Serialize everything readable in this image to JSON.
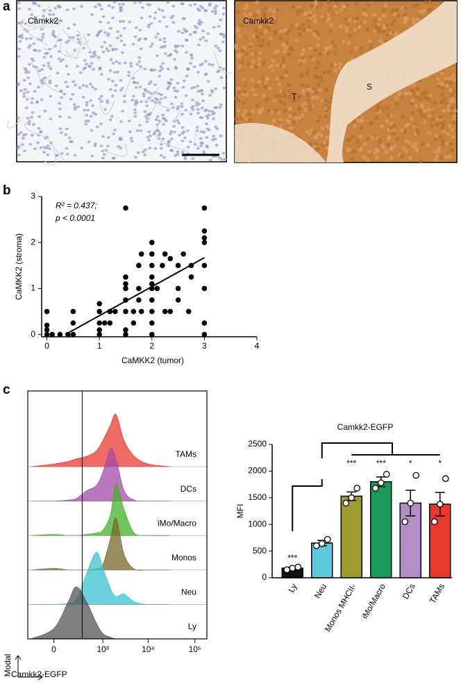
{
  "chart_data": [
    {
      "type": "image",
      "panel": "a",
      "labels": [
        "Camkk2",
        "Camkk2"
      ],
      "regions": [
        "T",
        "S"
      ]
    },
    {
      "type": "scatter",
      "panel": "b",
      "x": [
        0,
        0,
        0,
        0,
        0.1,
        0.25,
        0.4,
        0.5,
        0.5,
        0.5,
        1,
        1,
        1,
        1,
        1,
        1.1,
        1.2,
        1.2,
        1.3,
        1.5,
        1.5,
        1.5,
        1.5,
        1.5,
        1.5,
        1.5,
        1.5,
        1.65,
        1.65,
        1.75,
        1.75,
        1.75,
        1.8,
        1.8,
        2,
        2,
        2,
        2,
        2,
        2,
        2,
        2,
        2,
        2,
        2.1,
        2.2,
        2.25,
        2.25,
        2.35,
        2.35,
        2.5,
        2.5,
        2.5,
        2.6,
        2.7,
        2.75,
        2.75,
        3,
        3,
        3,
        3,
        3,
        3,
        3,
        3
      ],
      "y": [
        0,
        0.1,
        0.2,
        0.5,
        0,
        0,
        0,
        0,
        0.25,
        0.5,
        0,
        0.1,
        0.25,
        0.5,
        0.67,
        0.25,
        0.25,
        0.5,
        0.5,
        0,
        0.1,
        0.5,
        0.75,
        1,
        1.1,
        1.25,
        2.75,
        0.25,
        0.5,
        0.75,
        1,
        1.5,
        0.5,
        1.75,
        0,
        0.25,
        0.5,
        0.75,
        1,
        1.1,
        1.25,
        1.5,
        1.75,
        2,
        1,
        1.5,
        0.5,
        1.75,
        0.5,
        1.65,
        0.75,
        1,
        1.5,
        1.75,
        0.5,
        1.25,
        1.5,
        0,
        0.25,
        1,
        1.5,
        2,
        2.1,
        2.25,
        2.75
      ],
      "fit": {
        "x": [
          0.35,
          3
        ],
        "y": [
          0,
          1.67
        ]
      },
      "xlim": [
        -0.1,
        4
      ],
      "ylim": [
        -0.05,
        3
      ],
      "xticks": [
        0,
        1,
        2,
        3,
        4
      ],
      "yticks": [
        0,
        1,
        2,
        3
      ],
      "xlabel": "CaMKK2 (tumor)",
      "ylabel": "CaMKK2 (stroma)",
      "annotations": [
        "R² = 0.437;",
        "p < 0.0001"
      ],
      "color": "#000000"
    },
    {
      "type": "density",
      "panel": "c",
      "x": [
        -200,
        0,
        100,
        200,
        400,
        700,
        1000,
        1500,
        2000,
        3000,
        5000,
        10000,
        30000
      ],
      "series": [
        {
          "name": "TAMs",
          "color": "#e8392f",
          "values": [
            0,
            0.05,
            0.1,
            0.15,
            0.2,
            0.3,
            0.5,
            0.8,
            1,
            0.5,
            0.2,
            0.05,
            0
          ]
        },
        {
          "name": "DCs",
          "color": "#a54aa8",
          "values": [
            0,
            0,
            0.02,
            0.05,
            0.2,
            0.3,
            0.55,
            1,
            0.8,
            0.2,
            0.02,
            0,
            0
          ]
        },
        {
          "name": "iMo/Macro",
          "color": "#43b02a",
          "values": [
            0,
            0.02,
            0,
            0,
            0.02,
            0.05,
            0.1,
            0.4,
            1,
            0.5,
            0.05,
            0,
            0
          ]
        },
        {
          "name": "Monos",
          "color": "#7a6a2a",
          "values": [
            0,
            0.03,
            0,
            0,
            0,
            0.02,
            0.1,
            0.6,
            1,
            0.3,
            0.02,
            0,
            0
          ]
        },
        {
          "name": "Neu",
          "color": "#38c3cf",
          "values": [
            0,
            0,
            0.02,
            0.1,
            0.6,
            1,
            0.7,
            0.3,
            0.15,
            0.2,
            0.05,
            0,
            0
          ]
        },
        {
          "name": "Ly",
          "color": "#555555",
          "values": [
            0,
            0.2,
            0.7,
            1,
            0.7,
            0.3,
            0.1,
            0.03,
            0,
            0,
            0,
            0,
            0
          ]
        }
      ],
      "xlim": [
        -260,
        180000
      ],
      "xscale": "biexponential",
      "xticks": [
        0,
        {
          "value": 1000,
          "label": "10³"
        },
        {
          "value": 10000,
          "label": "10⁴"
        },
        {
          "value": 100000,
          "label": "10⁵"
        }
      ],
      "vline": 300,
      "ylabel": "Modal",
      "xlabel": "Camkk2-EGFP"
    },
    {
      "type": "bar",
      "title": "Camkk2-EGFP",
      "ylabel": "MFI",
      "categories": [
        "Ly",
        "Neu",
        "Monos MHCII-",
        "iMo/Macro",
        "DCs",
        "TAMs"
      ],
      "values": [
        180,
        650,
        1530,
        1800,
        1400,
        1380
      ],
      "errors": [
        20,
        50,
        80,
        90,
        240,
        220
      ],
      "points": [
        [
          150,
          180,
          200
        ],
        [
          600,
          640,
          720
        ],
        [
          1400,
          1500,
          1680
        ],
        [
          1680,
          1780,
          1940
        ],
        [
          1050,
          1400,
          1920
        ],
        [
          1050,
          1380,
          1860
        ]
      ],
      "colors": [
        "#111111",
        "#5bc8dc",
        "#9d9a2e",
        "#1a9a5a",
        "#b48cc8",
        "#e8392f"
      ],
      "significance": [
        "***",
        "",
        "***",
        "***",
        "*",
        "*"
      ],
      "ylim": [
        0,
        2500
      ],
      "yticks": [
        0,
        500,
        1000,
        1500,
        2000,
        2500
      ]
    }
  ]
}
